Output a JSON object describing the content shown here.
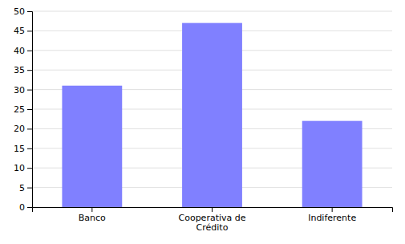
{
  "chart_data": {
    "type": "bar",
    "categories": [
      "Banco",
      "Cooperativa de\nCrédito",
      "Indiferente"
    ],
    "values": [
      31,
      47,
      22
    ],
    "color": "#8080ff",
    "ylim": [
      0,
      50
    ],
    "yticks": [
      0,
      5,
      10,
      15,
      20,
      25,
      30,
      35,
      40,
      45,
      50
    ],
    "grid": true
  }
}
